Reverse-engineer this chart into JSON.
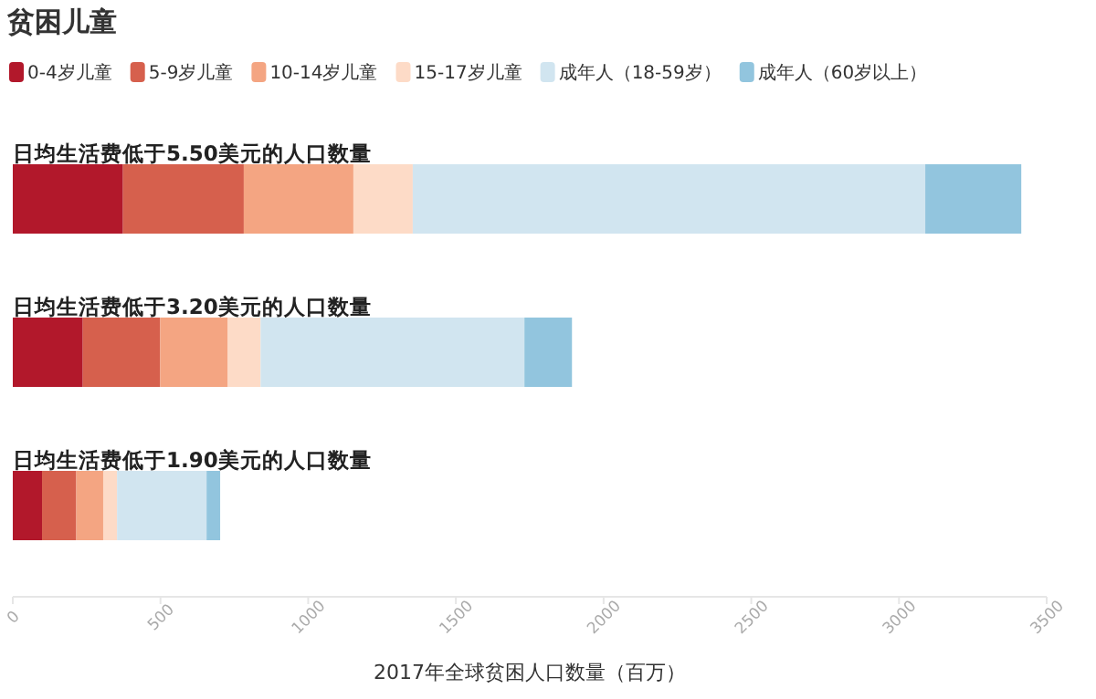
{
  "chart_data": {
    "type": "bar",
    "orientation": "horizontal",
    "stacked": true,
    "title": "贫困儿童",
    "xlabel": "2017年全球贫困人口数量（百万）",
    "categories": [
      "日均生活费低于5.50美元的人口数量",
      "日均生活费低于3.20美元的人口数量",
      "日均生活费低于1.90美元的人口数量"
    ],
    "series": [
      {
        "name": "0-4岁儿童",
        "color": "#b2182b",
        "values": [
          373,
          237,
          99
        ]
      },
      {
        "name": "5-9岁儿童",
        "color": "#d6604d",
        "values": [
          409,
          262,
          116
        ]
      },
      {
        "name": "10-14岁儿童",
        "color": "#f4a582",
        "values": [
          371,
          229,
          91
        ]
      },
      {
        "name": "15-17岁儿童",
        "color": "#fddbc7",
        "values": [
          201,
          111,
          47
        ]
      },
      {
        "name": "成年人（18-59岁）",
        "color": "#d1e5f0",
        "values": [
          1735,
          893,
          303
        ]
      },
      {
        "name": "成年人（60岁以上）",
        "color": "#92c5de",
        "values": [
          325,
          161,
          46
        ]
      }
    ],
    "xlim": [
      0,
      3500
    ],
    "xticks": [
      0,
      500,
      1000,
      1500,
      2000,
      2500,
      3000,
      3500
    ],
    "legend": "top",
    "grid": false
  }
}
